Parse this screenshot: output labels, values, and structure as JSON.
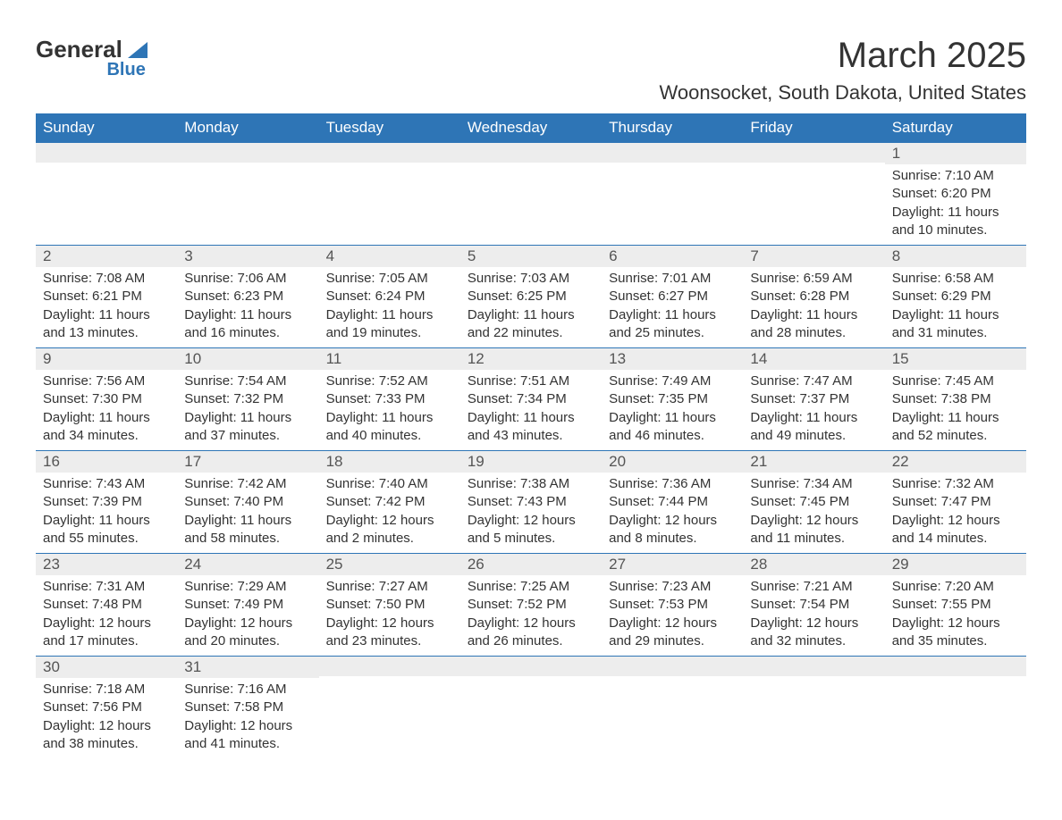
{
  "logo": {
    "text_top": "General",
    "text_bottom": "Blue"
  },
  "title": "March 2025",
  "location": "Woonsocket, South Dakota, United States",
  "colors": {
    "header_bg": "#2e75b6",
    "header_text": "#ffffff",
    "daynum_bg": "#ededed",
    "row_border": "#2e75b6",
    "body_text": "#333333",
    "page_bg": "#ffffff"
  },
  "typography": {
    "title_fontsize": 40,
    "location_fontsize": 22,
    "th_fontsize": 17,
    "daynum_fontsize": 17,
    "cell_fontsize": 15
  },
  "weekdays": [
    "Sunday",
    "Monday",
    "Tuesday",
    "Wednesday",
    "Thursday",
    "Friday",
    "Saturday"
  ],
  "labels": {
    "sunrise": "Sunrise:",
    "sunset": "Sunset:",
    "daylight": "Daylight:"
  },
  "weeks": [
    [
      {
        "blank": true
      },
      {
        "blank": true
      },
      {
        "blank": true
      },
      {
        "blank": true
      },
      {
        "blank": true
      },
      {
        "blank": true
      },
      {
        "day": "1",
        "sunrise": "7:10 AM",
        "sunset": "6:20 PM",
        "daylight": "11 hours and 10 minutes."
      }
    ],
    [
      {
        "day": "2",
        "sunrise": "7:08 AM",
        "sunset": "6:21 PM",
        "daylight": "11 hours and 13 minutes."
      },
      {
        "day": "3",
        "sunrise": "7:06 AM",
        "sunset": "6:23 PM",
        "daylight": "11 hours and 16 minutes."
      },
      {
        "day": "4",
        "sunrise": "7:05 AM",
        "sunset": "6:24 PM",
        "daylight": "11 hours and 19 minutes."
      },
      {
        "day": "5",
        "sunrise": "7:03 AM",
        "sunset": "6:25 PM",
        "daylight": "11 hours and 22 minutes."
      },
      {
        "day": "6",
        "sunrise": "7:01 AM",
        "sunset": "6:27 PM",
        "daylight": "11 hours and 25 minutes."
      },
      {
        "day": "7",
        "sunrise": "6:59 AM",
        "sunset": "6:28 PM",
        "daylight": "11 hours and 28 minutes."
      },
      {
        "day": "8",
        "sunrise": "6:58 AM",
        "sunset": "6:29 PM",
        "daylight": "11 hours and 31 minutes."
      }
    ],
    [
      {
        "day": "9",
        "sunrise": "7:56 AM",
        "sunset": "7:30 PM",
        "daylight": "11 hours and 34 minutes."
      },
      {
        "day": "10",
        "sunrise": "7:54 AM",
        "sunset": "7:32 PM",
        "daylight": "11 hours and 37 minutes."
      },
      {
        "day": "11",
        "sunrise": "7:52 AM",
        "sunset": "7:33 PM",
        "daylight": "11 hours and 40 minutes."
      },
      {
        "day": "12",
        "sunrise": "7:51 AM",
        "sunset": "7:34 PM",
        "daylight": "11 hours and 43 minutes."
      },
      {
        "day": "13",
        "sunrise": "7:49 AM",
        "sunset": "7:35 PM",
        "daylight": "11 hours and 46 minutes."
      },
      {
        "day": "14",
        "sunrise": "7:47 AM",
        "sunset": "7:37 PM",
        "daylight": "11 hours and 49 minutes."
      },
      {
        "day": "15",
        "sunrise": "7:45 AM",
        "sunset": "7:38 PM",
        "daylight": "11 hours and 52 minutes."
      }
    ],
    [
      {
        "day": "16",
        "sunrise": "7:43 AM",
        "sunset": "7:39 PM",
        "daylight": "11 hours and 55 minutes."
      },
      {
        "day": "17",
        "sunrise": "7:42 AM",
        "sunset": "7:40 PM",
        "daylight": "11 hours and 58 minutes."
      },
      {
        "day": "18",
        "sunrise": "7:40 AM",
        "sunset": "7:42 PM",
        "daylight": "12 hours and 2 minutes."
      },
      {
        "day": "19",
        "sunrise": "7:38 AM",
        "sunset": "7:43 PM",
        "daylight": "12 hours and 5 minutes."
      },
      {
        "day": "20",
        "sunrise": "7:36 AM",
        "sunset": "7:44 PM",
        "daylight": "12 hours and 8 minutes."
      },
      {
        "day": "21",
        "sunrise": "7:34 AM",
        "sunset": "7:45 PM",
        "daylight": "12 hours and 11 minutes."
      },
      {
        "day": "22",
        "sunrise": "7:32 AM",
        "sunset": "7:47 PM",
        "daylight": "12 hours and 14 minutes."
      }
    ],
    [
      {
        "day": "23",
        "sunrise": "7:31 AM",
        "sunset": "7:48 PM",
        "daylight": "12 hours and 17 minutes."
      },
      {
        "day": "24",
        "sunrise": "7:29 AM",
        "sunset": "7:49 PM",
        "daylight": "12 hours and 20 minutes."
      },
      {
        "day": "25",
        "sunrise": "7:27 AM",
        "sunset": "7:50 PM",
        "daylight": "12 hours and 23 minutes."
      },
      {
        "day": "26",
        "sunrise": "7:25 AM",
        "sunset": "7:52 PM",
        "daylight": "12 hours and 26 minutes."
      },
      {
        "day": "27",
        "sunrise": "7:23 AM",
        "sunset": "7:53 PM",
        "daylight": "12 hours and 29 minutes."
      },
      {
        "day": "28",
        "sunrise": "7:21 AM",
        "sunset": "7:54 PM",
        "daylight": "12 hours and 32 minutes."
      },
      {
        "day": "29",
        "sunrise": "7:20 AM",
        "sunset": "7:55 PM",
        "daylight": "12 hours and 35 minutes."
      }
    ],
    [
      {
        "day": "30",
        "sunrise": "7:18 AM",
        "sunset": "7:56 PM",
        "daylight": "12 hours and 38 minutes."
      },
      {
        "day": "31",
        "sunrise": "7:16 AM",
        "sunset": "7:58 PM",
        "daylight": "12 hours and 41 minutes."
      },
      {
        "blank": true
      },
      {
        "blank": true
      },
      {
        "blank": true
      },
      {
        "blank": true
      },
      {
        "blank": true
      }
    ]
  ]
}
